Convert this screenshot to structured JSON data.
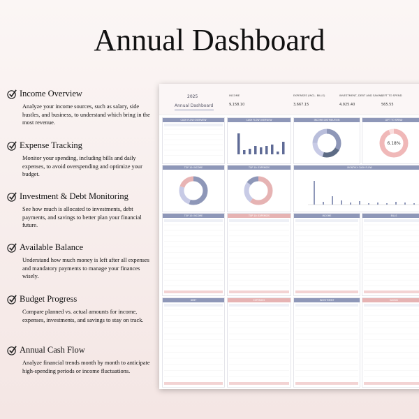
{
  "header": {
    "title": "Annual Dashboard"
  },
  "features": [
    {
      "title": "Income Overview",
      "text": "Analyze your income sources, such as salary, side hustles, and business, to understand which bring in the most revenue."
    },
    {
      "title": "Expense Tracking",
      "text": "Monitor your spending, including bills and daily expenses, to avoid overspending and optimize your budget."
    },
    {
      "title": "Investment & Debt Monitoring",
      "text": "See how much is allocated to investments, debt payments, and savings to better plan your financial future."
    },
    {
      "title": "Available Balance",
      "text": "Understand how much money is left after all expenses and mandatory payments to manage your finances wisely."
    },
    {
      "title": "Budget Progress",
      "text": "Compare planned vs. actual amounts for income, expenses, investments, and savings to stay on track."
    },
    {
      "title": "Annual Cash Flow",
      "text": "Analyze financial trends month by month to anticipate high-spending periods or income fluctuations."
    }
  ],
  "dashboard": {
    "year": "2025",
    "title": "Annual Dashboard",
    "kpis": [
      {
        "label": "INCOME",
        "value": "9,158.10"
      },
      {
        "label": "EXPENSES (INCL. BILLS)",
        "value": "3,667.15"
      },
      {
        "label": "INVESTMENT, DEBT AND SAVING",
        "value": "4,925.40"
      },
      {
        "label": "LEFT TO SPEND",
        "value": "565.55"
      }
    ],
    "panels": [
      "CASH FLOW OVERVIEW",
      "CASH FLOW OVERVIEW",
      "INCOME DISTRIBUTION",
      "LEFT TO SPEND",
      "TOP 10: INCOME",
      "TOP 10: EXPENSES",
      "MONTHLY CASH FLOW",
      "TOP 10: INCOME",
      "TOP 10: EXPENSES",
      "INCOME",
      "BILLS",
      "DEBT",
      "EXPENSES",
      "INVESTMENT",
      "SAVING"
    ],
    "left_to_spend_pct": "6.18%"
  }
}
